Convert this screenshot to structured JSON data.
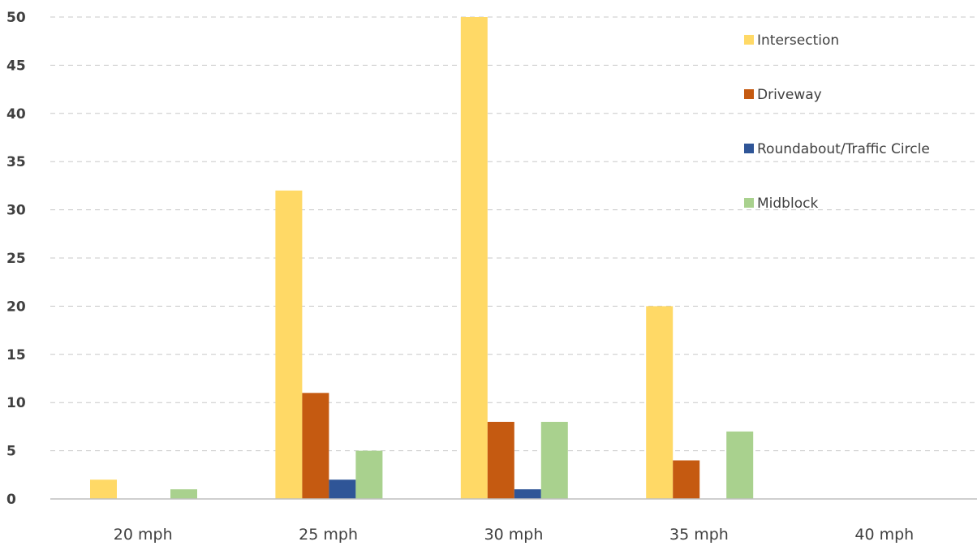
{
  "chart_data": {
    "type": "bar",
    "title": "",
    "xlabel": "",
    "ylabel": "",
    "categories": [
      "20 mph",
      "25 mph",
      "30 mph",
      "35 mph",
      "40 mph"
    ],
    "ylim": [
      0,
      50
    ],
    "yticks": [
      0,
      5,
      10,
      15,
      20,
      25,
      30,
      35,
      40,
      45,
      50
    ],
    "grid": true,
    "legend_position": "top-right",
    "series": [
      {
        "name": "Intersection",
        "color": "#FFD966",
        "values": [
          2,
          32,
          50,
          20,
          0
        ]
      },
      {
        "name": "Driveway",
        "color": "#C55A11",
        "values": [
          0,
          11,
          8,
          4,
          0
        ]
      },
      {
        "name": "Roundabout/Traffic Circle",
        "color": "#2F5597",
        "values": [
          0,
          2,
          1,
          0,
          0
        ]
      },
      {
        "name": "Midblock",
        "color": "#A9D18E",
        "values": [
          1,
          5,
          8,
          7,
          0
        ]
      }
    ]
  }
}
